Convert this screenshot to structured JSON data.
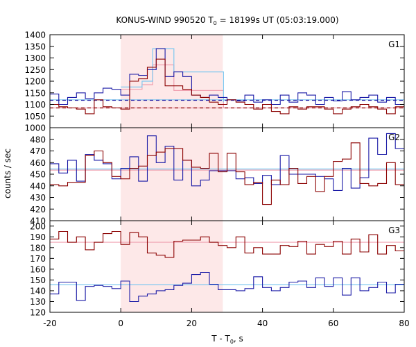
{
  "chart_data": {
    "type": "line",
    "title_main": "KONUS-WIND 990520 T",
    "title_sub": "0",
    "title_rest": " = 18199s UT (05:03:19.000)",
    "xlabel_main": "T - T",
    "xlabel_sub": "0",
    "xlabel_rest": ", s",
    "ylabel": "counts / sec",
    "xlim": [
      -20,
      80
    ],
    "xticks": [
      "-20",
      "0",
      "20",
      "40",
      "60",
      "80"
    ],
    "highlight": {
      "x": [
        0,
        28.8
      ],
      "color": "#fde8e8"
    },
    "colors": {
      "red": "#8b0000",
      "blue": "#1a1aa6",
      "lightblue": "#7ec8f0",
      "pink": "#f0a0b0"
    },
    "panels": [
      {
        "label": "G1",
        "ylim": [
          1000,
          1400
        ],
        "yticks": [
          "1000",
          "1050",
          "1100",
          "1150",
          "1200",
          "1250",
          "1300",
          "1350",
          "1400"
        ],
        "series_red": [
          1100,
          1090,
          1085,
          1080,
          1060,
          1120,
          1090,
          1085,
          1080,
          1200,
          1210,
          1260,
          1295,
          1180,
          1180,
          1165,
          1140,
          1130,
          1110,
          1100,
          1120,
          1110,
          1100,
          1080,
          1100,
          1070,
          1060,
          1090,
          1080,
          1090,
          1090,
          1080,
          1060,
          1080,
          1090,
          1100,
          1090,
          1080,
          1060,
          1090
        ],
        "series_blue": [
          1145,
          1100,
          1130,
          1150,
          1125,
          1150,
          1170,
          1165,
          1140,
          1230,
          1225,
          1250,
          1340,
          1220,
          1240,
          1220,
          1140,
          1130,
          1140,
          1130,
          1120,
          1115,
          1140,
          1110,
          1120,
          1100,
          1140,
          1110,
          1150,
          1140,
          1100,
          1130,
          1115,
          1155,
          1120,
          1130,
          1140,
          1110,
          1130,
          1100
        ],
        "bg_red": 1085,
        "bg_blue": 1118,
        "model_blue": [
          [
            0,
            1175
          ],
          [
            6,
            1175
          ],
          [
            6,
            1200
          ],
          [
            9,
            1200
          ],
          [
            9,
            1340
          ],
          [
            15,
            1340
          ],
          [
            15,
            1240
          ],
          [
            29,
            1240
          ],
          [
            29,
            1110
          ]
        ],
        "model_red": [
          [
            0,
            1165
          ],
          [
            6,
            1165
          ],
          [
            6,
            1185
          ],
          [
            9,
            1185
          ],
          [
            9,
            1270
          ],
          [
            15,
            1270
          ],
          [
            15,
            1160
          ],
          [
            29,
            1160
          ],
          [
            29,
            1085
          ]
        ],
        "fit_lightblue_y": 1120,
        "fit_pink_y": 1085
      },
      {
        "label": "G2",
        "ylim": [
          410,
          490
        ],
        "yticks": [
          "410",
          "420",
          "430",
          "440",
          "450",
          "460",
          "470",
          "480"
        ],
        "series_red": [
          441,
          440,
          443,
          443,
          466,
          470,
          460,
          448,
          446,
          455,
          457,
          466,
          469,
          472,
          472,
          462,
          456,
          455,
          468,
          452,
          468,
          452,
          441,
          443,
          424,
          445,
          441,
          455,
          442,
          448,
          435,
          448,
          461,
          463,
          477,
          442,
          440,
          442,
          460,
          441
        ],
        "series_blue": [
          459,
          451,
          462,
          444,
          467,
          462,
          459,
          446,
          455,
          465,
          444,
          483,
          460,
          474,
          445,
          462,
          440,
          445,
          453,
          453,
          453,
          446,
          447,
          442,
          449,
          441,
          466,
          450,
          450,
          450,
          448,
          446,
          436,
          455,
          438,
          447,
          481,
          467,
          485,
          472
        ],
        "fit_lightblue_y": 454.5,
        "fit_pink_y": 453.5
      },
      {
        "label": "G3",
        "ylim": [
          120,
          205
        ],
        "yticks": [
          "120",
          "130",
          "140",
          "150",
          "160",
          "170",
          "180",
          "190",
          "200"
        ],
        "series_red": [
          188,
          195,
          185,
          190,
          178,
          185,
          193,
          195,
          183,
          194,
          190,
          175,
          173,
          171,
          186,
          187,
          187,
          190,
          185,
          182,
          180,
          190,
          175,
          180,
          174,
          174,
          182,
          181,
          186,
          174,
          183,
          181,
          186,
          174,
          188,
          176,
          192,
          174,
          182,
          177
        ],
        "series_blue": [
          137,
          148,
          148,
          131,
          144,
          145,
          144,
          142,
          149,
          130,
          135,
          137,
          140,
          141,
          145,
          147,
          155,
          157,
          146,
          141,
          141,
          140,
          142,
          153,
          143,
          140,
          143,
          148,
          149,
          143,
          152,
          144,
          152,
          136,
          152,
          140,
          143,
          148,
          138,
          146
        ],
        "fit_lightblue_y": 145.5,
        "fit_pink_y": 185
      }
    ]
  }
}
